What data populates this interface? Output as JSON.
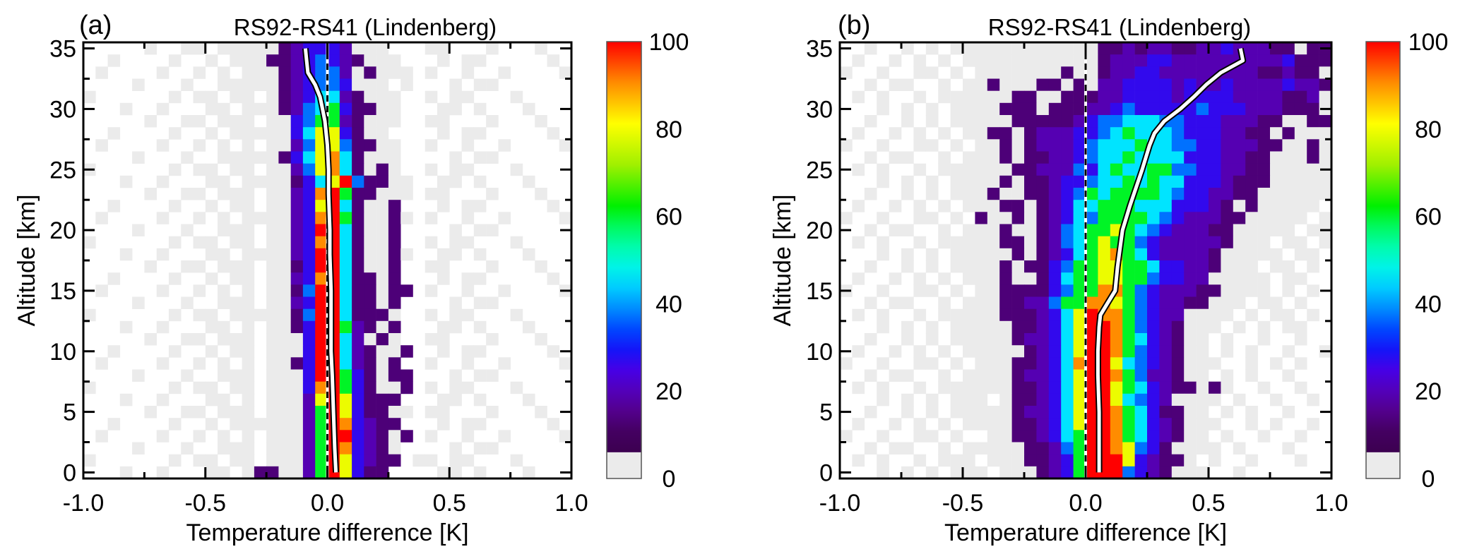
{
  "chart_data": {
    "type": "heatmap",
    "level_percent": {
      "0": 0,
      "1": 3,
      "2": 8,
      "3": 14,
      "4": 22,
      "5": 33,
      "6": 42,
      "7": 58,
      "8": 78,
      "9": 90,
      "A": 100
    },
    "colorbar": {
      "range": [
        0,
        100
      ],
      "ticks": [
        "0",
        "20",
        "40",
        "60",
        "80",
        "100"
      ],
      "gray_below": 6
    },
    "colors": {
      "gray": "#ebebeb",
      "frame": "#000000",
      "mean_line": "#ffffff",
      "mean_outline": "#000000"
    },
    "panels": [
      {
        "tag": "(a)",
        "title": "RS92-RS41 (Lindenberg)",
        "xlabel": "Temperature difference [K]",
        "ylabel": "Altitude [km]",
        "xlim": [
          -1.0,
          1.0
        ],
        "ylim": [
          -0.5,
          35.5
        ],
        "x_bin_width": 0.05,
        "y_bin_height": 1,
        "xticks": [
          "-1.0",
          "-0.5",
          "0.0",
          "0.5",
          "1.0"
        ],
        "yticks": [
          "0",
          "5",
          "10",
          "15",
          "20",
          "25",
          "30",
          "35"
        ],
        "rows_top_altitude": 35,
        "rows": [
          "0000010011011111234443111000110001000100",
          "0010000100101112234543211100010110000010",
          "0100001001010111234553121110100100100001",
          "0000100010011111234554111010001011000000",
          "1000000101101101234663211100101100010000",
          "0001001000110111235674221100011010001000",
          "0000010011011101145773211100110001000100",
          "0010000100101111146884211000010110000010",
          "0100001001010101135885221100100100100001",
          "0000100010011111246896211100001011000000",
          "1000000101101101135896212100101100010000",
          "000100100011011112468A522110011010001000",
          "00000100110111011349A7221110110001000100",
          "00100001001011011348A6211200010110000010",
          "01000010010101111349A7211210100100100001",
          "0000100010011101134AA6211200001011000000",
          "10000001011011011349A6211200101100010000",
          "0001001000110111134AA6211210011010001000",
          "0000010011011101124AA6211200110001000100",
          "00100001001011011349A6221200010110000010",
          "0100001001010101125AA6221220100100100001",
          "0000100010011101134AA6221200001011000000",
          "1000000101101111125AA6222100101100010000",
          "0001001000110101124AA7321200011010001000",
          "0000010011011101114AA6312100110001000100",
          "0010000100101101114AA6321120010110000010",
          "0100001001010101124AA6321200100100100001",
          "0000100010011101114AA7421220001011000000",
          "10000001011011011149A7421120101100010000",
          "00010010001101011138A8422200011010001000",
          "00000100110111011137A8422110110001000100",
          "00100001001011111137A9432200010110000010",
          "01000010010101011137AA432120100100100001",
          "00001000100111011137A9432100001011000000",
          "10000001011011011137A8432201101100010000",
          "00010010001101221137A8422000011010001000"
        ],
        "mean_profile": [
          [
            0,
            0.035
          ],
          [
            2,
            0.03
          ],
          [
            5,
            0.025
          ],
          [
            8,
            0.02
          ],
          [
            10,
            0.015
          ],
          [
            13,
            0.015
          ],
          [
            15,
            0.015
          ],
          [
            18,
            0.01
          ],
          [
            20,
            0.01
          ],
          [
            23,
            0.005
          ],
          [
            25,
            0.005
          ],
          [
            27,
            0.0
          ],
          [
            29,
            -0.01
          ],
          [
            30,
            -0.02
          ],
          [
            31,
            -0.03
          ],
          [
            32,
            -0.05
          ],
          [
            33,
            -0.08
          ],
          [
            34,
            -0.085
          ],
          [
            35,
            -0.09
          ]
        ]
      },
      {
        "tag": "(b)",
        "title": "RS92-RS41 (Lindenberg)",
        "xlabel": "Temperature difference [K]",
        "ylabel": "Altitude [km]",
        "xlim": [
          -1.0,
          1.0
        ],
        "ylim": [
          -0.5,
          35.5
        ],
        "x_bin_width": 0.05,
        "y_bin_height": 1,
        "xticks": [
          "-1.0",
          "-0.5",
          "0.0",
          "0.5",
          "1.0"
        ],
        "yticks": [
          "0",
          "5",
          "10",
          "15",
          "20",
          "25",
          "30",
          "35"
        ],
        "rows_top_altitude": 35,
        "rows": [
          "0010010101111111111112232332233433322122",
          "0100101010111111111112333443333333334222",
          "1001001101011111112112334433333333223221",
          "0010110010112111221213344443433433334332",
          "0101001011111122112223344443444433332231",
          "0001010101111222122233454444454443332221",
          "0010010101111122222345566655444333221122",
          "0100101010112212333445676665444332212111",
          "1001001101011212333456667665544333221121",
          "0010110010111212233456676666444332211121",
          "0101001011111122333546766775544332211111",
          "0001010101111212234456676766444322211111",
          "0010010101112112234576777765443322111111",
          "0100101010111221234667776664443212111110",
          "1001001101021121234657777654333221111101",
          "0010110010111211235677876543332211111011",
          "0101001011111221235678775433333211101101",
          "0001010101111121234678976433332111110110",
          "0010010101111212245778877644332111011010",
          "0100101010111211246778877544331111101100",
          "1001001101011222245779975433322111101010",
          "0010110010111223357799875433221110110100",
          "01010010111112223468A9975433111101011010",
          "00010101011111223468AA975432111010101100",
          "00100101011111233468AA976432110100100100",
          "01001010101111123468AA975432110101001001",
          "10010011010111223469AA865432111001010100",
          "00101100101111233468AA975332110101001000",
          "01010010111111223468AA876432212100100100",
          "00010101011101223468AA865431111010010010",
          "00100101011111233468AA976422110101001000",
          "01001010101111223468AA976432111001010010",
          "10010011010011223467AA976432110100100100",
          "00101100101111122357AA985421111010001000",
          "01010010111011122347AAA84322101001000100",
          "00010101011101112347AAA54321110010000000"
        ],
        "mean_profile": [
          [
            0,
            0.055
          ],
          [
            3,
            0.055
          ],
          [
            5,
            0.055
          ],
          [
            8,
            0.05
          ],
          [
            10,
            0.05
          ],
          [
            12,
            0.055
          ],
          [
            13,
            0.06
          ],
          [
            14,
            0.09
          ],
          [
            15,
            0.12
          ],
          [
            17,
            0.13
          ],
          [
            20,
            0.15
          ],
          [
            22,
            0.18
          ],
          [
            25,
            0.23
          ],
          [
            27,
            0.26
          ],
          [
            28,
            0.28
          ],
          [
            29,
            0.32
          ],
          [
            30,
            0.385
          ],
          [
            31,
            0.44
          ],
          [
            32,
            0.49
          ],
          [
            33,
            0.55
          ],
          [
            34,
            0.64
          ],
          [
            35,
            0.63
          ]
        ]
      }
    ]
  }
}
